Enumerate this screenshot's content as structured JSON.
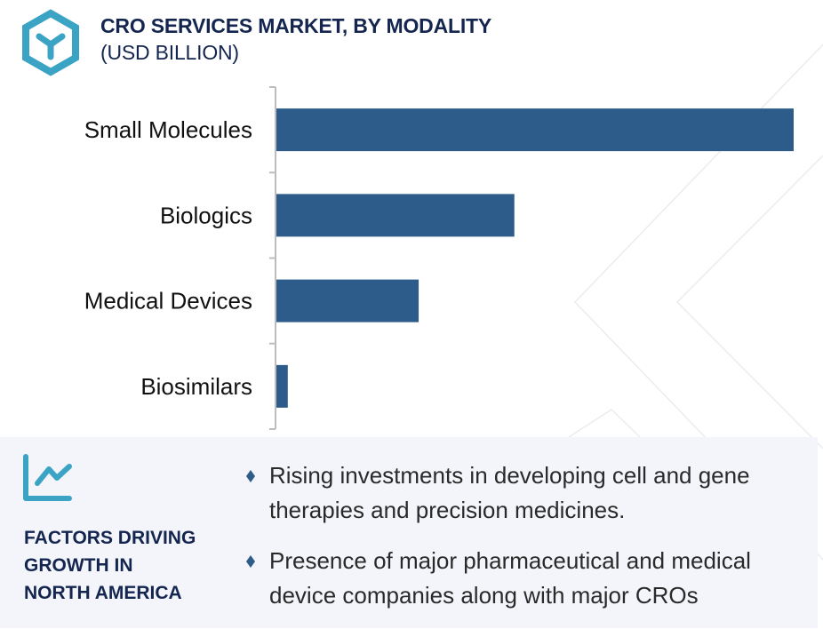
{
  "header": {
    "title": "CRO SERVICES MARKET, BY MODALITY",
    "subtitle": "(USD BILLION)",
    "logo_icon": "hexagon-y-logo-icon"
  },
  "colors": {
    "bar": "#2d5c8a",
    "title": "#14264f",
    "accent": "#3ba3c4",
    "panel_bg": "#f3f5fa",
    "axis": "#bdbdbd"
  },
  "chart_data": {
    "type": "bar",
    "orientation": "horizontal",
    "title": "CRO SERVICES MARKET, BY MODALITY",
    "subtitle": "(USD BILLION)",
    "categories": [
      "Small Molecules",
      "Biologics",
      "Medical Devices",
      "Biosimilars"
    ],
    "values": [
      100,
      46,
      27.5,
      2.2
    ],
    "value_note": "Relative bar lengths (largest = 100); no numeric axis is shown",
    "xlabel": "",
    "ylabel": "",
    "xlim": [
      0,
      100
    ],
    "grid": false,
    "legend": "none"
  },
  "factors": {
    "icon": "trend-chart-icon",
    "heading_lines": [
      "FACTORS DRIVING",
      "GROWTH IN",
      "NORTH AMERICA"
    ],
    "bullets": [
      "Rising investments in developing cell and gene therapies and precision medicines.",
      "Presence of major pharmaceutical and medical device companies along with major CROs"
    ]
  }
}
